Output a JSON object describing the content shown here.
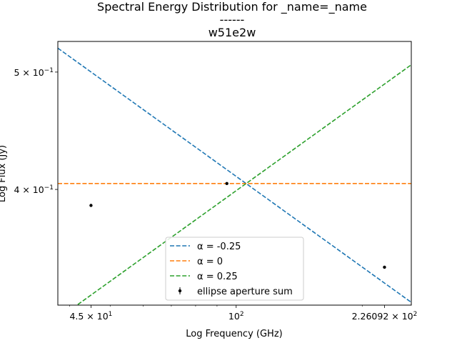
{
  "chart_data": {
    "type": "line",
    "title_lines": [
      "Spectral Energy Distribution for _name=_name",
      "------",
      "w51e2w"
    ],
    "xlabel": "Log Frequency (GHz)",
    "ylabel": "Log Flux (Jy)",
    "xscale": "log",
    "yscale": "log",
    "xlim": [
      37.5,
      262.0
    ],
    "ylim": [
      0.321,
      0.53
    ],
    "grid": false,
    "legend_position": "lower center",
    "x_ticks": [
      {
        "value": 45,
        "mantissa": "4.5",
        "exp": "1"
      },
      {
        "value": 100,
        "mantissa": "",
        "exp": "2"
      },
      {
        "value": 226.092,
        "mantissa": "2.26092",
        "exp": "2"
      }
    ],
    "y_ticks": [
      {
        "value": 0.5,
        "mantissa": "5",
        "exp": "−1"
      },
      {
        "value": 0.4,
        "mantissa": "4",
        "exp": "−1"
      }
    ],
    "series": [
      {
        "name": "α = -0.25",
        "kind": "line",
        "style": "dashed",
        "color": "#1f77b4",
        "x": [
          37.5,
          262.0
        ],
        "y": [
          0.5233,
          0.3227
        ]
      },
      {
        "name": "α = 0",
        "kind": "line",
        "style": "dashed",
        "color": "#ff7f0e",
        "x": [
          37.5,
          262.0
        ],
        "y": [
          0.4045,
          0.4045
        ]
      },
      {
        "name": "α = 0.25",
        "kind": "line",
        "style": "dashed",
        "color": "#2ca02c",
        "x": [
          37.5,
          262.0
        ],
        "y": [
          0.3127,
          0.507
        ]
      },
      {
        "name": "ellipse aperture sum",
        "kind": "errorbar",
        "color": "#000000",
        "x": [
          45,
          95,
          226.092
        ],
        "y": [
          0.388,
          0.4045,
          0.345
        ]
      }
    ]
  }
}
